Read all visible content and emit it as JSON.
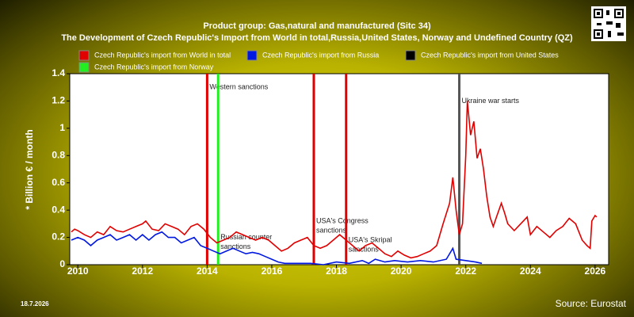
{
  "chart_data": {
    "type": "line",
    "title": "Product group: Gas,natural and manufactured (Sitc 34)",
    "subtitle": "The Development of Czech Republic's Import from World in total,Russia,United States, Norway and Undefined Country (QZ)",
    "y_label": "* Billion € / month",
    "date": "18.7.2026",
    "source": "Source: Eurostat",
    "xlim": [
      2009.75,
      2026.42
    ],
    "xticks": [
      2010,
      2012,
      2014,
      2016,
      2018,
      2020,
      2022,
      2024,
      2026
    ],
    "ylim": [
      0,
      1.4
    ],
    "yticks": [
      0,
      0.2,
      0.4,
      0.6,
      0.8,
      1,
      1.2,
      1.4
    ],
    "series": [
      {
        "name": "Czech Republic's import from World in total",
        "color": "#e00000",
        "x": [
          2009.8,
          2009.9,
          2010.0,
          2010.2,
          2010.4,
          2010.6,
          2010.8,
          2011.0,
          2011.2,
          2011.4,
          2011.6,
          2011.8,
          2012.0,
          2012.1,
          2012.3,
          2012.5,
          2012.7,
          2012.9,
          2013.1,
          2013.3,
          2013.5,
          2013.7,
          2013.9,
          2014.1,
          2014.3,
          2014.5,
          2014.7,
          2014.9,
          2015.1,
          2015.3,
          2015.5,
          2015.7,
          2015.9,
          2016.1,
          2016.3,
          2016.5,
          2016.7,
          2016.9,
          2017.1,
          2017.3,
          2017.5,
          2017.7,
          2017.9,
          2018.1,
          2018.3,
          2018.5,
          2018.7,
          2018.9,
          2019.1,
          2019.3,
          2019.5,
          2019.7,
          2019.9,
          2020.1,
          2020.3,
          2020.5,
          2020.7,
          2020.9,
          2021.1,
          2021.3,
          2021.5,
          2021.6,
          2021.7,
          2021.8,
          2021.9,
          2022.0,
          2022.05,
          2022.15,
          2022.25,
          2022.35,
          2022.45,
          2022.55,
          2022.65,
          2022.75,
          2022.85,
          2022.95,
          2023.1,
          2023.2,
          2023.3,
          2023.5,
          2023.7,
          2023.9,
          2024.0,
          2024.2,
          2024.4,
          2024.6,
          2024.8,
          2025.0,
          2025.2,
          2025.4,
          2025.6,
          2025.75,
          2025.85,
          2025.9,
          2026.0,
          2026.05
        ],
        "values": [
          0.24,
          0.26,
          0.25,
          0.22,
          0.2,
          0.24,
          0.22,
          0.28,
          0.25,
          0.24,
          0.26,
          0.28,
          0.3,
          0.32,
          0.26,
          0.25,
          0.3,
          0.28,
          0.26,
          0.22,
          0.28,
          0.3,
          0.26,
          0.2,
          0.16,
          0.18,
          0.2,
          0.24,
          0.22,
          0.2,
          0.18,
          0.2,
          0.18,
          0.14,
          0.1,
          0.12,
          0.16,
          0.18,
          0.2,
          0.14,
          0.12,
          0.14,
          0.18,
          0.22,
          0.18,
          0.14,
          0.1,
          0.14,
          0.16,
          0.12,
          0.08,
          0.06,
          0.1,
          0.07,
          0.05,
          0.06,
          0.08,
          0.1,
          0.14,
          0.3,
          0.45,
          0.64,
          0.4,
          0.22,
          0.3,
          0.8,
          1.2,
          0.95,
          1.05,
          0.78,
          0.85,
          0.7,
          0.5,
          0.35,
          0.28,
          0.35,
          0.45,
          0.38,
          0.3,
          0.25,
          0.3,
          0.35,
          0.22,
          0.28,
          0.24,
          0.2,
          0.25,
          0.28,
          0.34,
          0.3,
          0.18,
          0.14,
          0.12,
          0.32,
          0.36,
          0.35
        ]
      },
      {
        "name": "Czech Republic's import from Russia",
        "color": "#0018e0",
        "x": [
          2009.8,
          2010.0,
          2010.2,
          2010.4,
          2010.6,
          2010.8,
          2011.0,
          2011.2,
          2011.4,
          2011.6,
          2011.8,
          2012.0,
          2012.2,
          2012.4,
          2012.6,
          2012.8,
          2013.0,
          2013.2,
          2013.4,
          2013.6,
          2013.8,
          2014.0,
          2014.2,
          2014.4,
          2014.6,
          2014.8,
          2015.0,
          2015.2,
          2015.4,
          2015.6,
          2015.8,
          2016.0,
          2016.2,
          2016.4,
          2016.8,
          2017.2,
          2017.6,
          2018.0,
          2018.4,
          2018.8,
          2019.0,
          2019.2,
          2019.5,
          2019.8,
          2020.2,
          2020.6,
          2021.0,
          2021.4,
          2021.6,
          2021.7,
          2022.0,
          2022.3,
          2022.5
        ],
        "values": [
          0.18,
          0.2,
          0.18,
          0.14,
          0.18,
          0.2,
          0.22,
          0.18,
          0.2,
          0.22,
          0.18,
          0.22,
          0.18,
          0.22,
          0.24,
          0.2,
          0.2,
          0.16,
          0.18,
          0.2,
          0.14,
          0.12,
          0.1,
          0.08,
          0.1,
          0.12,
          0.1,
          0.08,
          0.09,
          0.08,
          0.06,
          0.04,
          0.02,
          0.01,
          0.01,
          0.01,
          0,
          0.02,
          0.01,
          0.03,
          0.01,
          0.04,
          0.02,
          0.03,
          0.02,
          0.03,
          0.02,
          0.04,
          0.12,
          0.04,
          0.03,
          0.02,
          0.01
        ]
      },
      {
        "name": "Czech Republic's import from United States",
        "color": "#000000",
        "x": [],
        "values": []
      },
      {
        "name": "Czech Republic's import from Norway",
        "color": "#22ee22",
        "x": [],
        "values": []
      }
    ],
    "events": [
      {
        "x": 2014.0,
        "color": "#e00000",
        "text": [
          "Western sanctions"
        ],
        "y": 1.3
      },
      {
        "x": 2014.34,
        "color": "#22ee22",
        "text": [
          "Russian counter",
          "sanctions"
        ],
        "y": 0.2
      },
      {
        "x": 2017.3,
        "color": "#e00000",
        "text": [
          "USA's Congress",
          "sanctions"
        ],
        "y": 0.32
      },
      {
        "x": 2018.3,
        "color": "#e00000",
        "text": [
          "USA's Skripal",
          "sanctions"
        ],
        "y": 0.18
      },
      {
        "x": 2021.8,
        "color": "#555555",
        "text": [
          "Ukraine war starts"
        ],
        "y": 1.2
      }
    ]
  }
}
